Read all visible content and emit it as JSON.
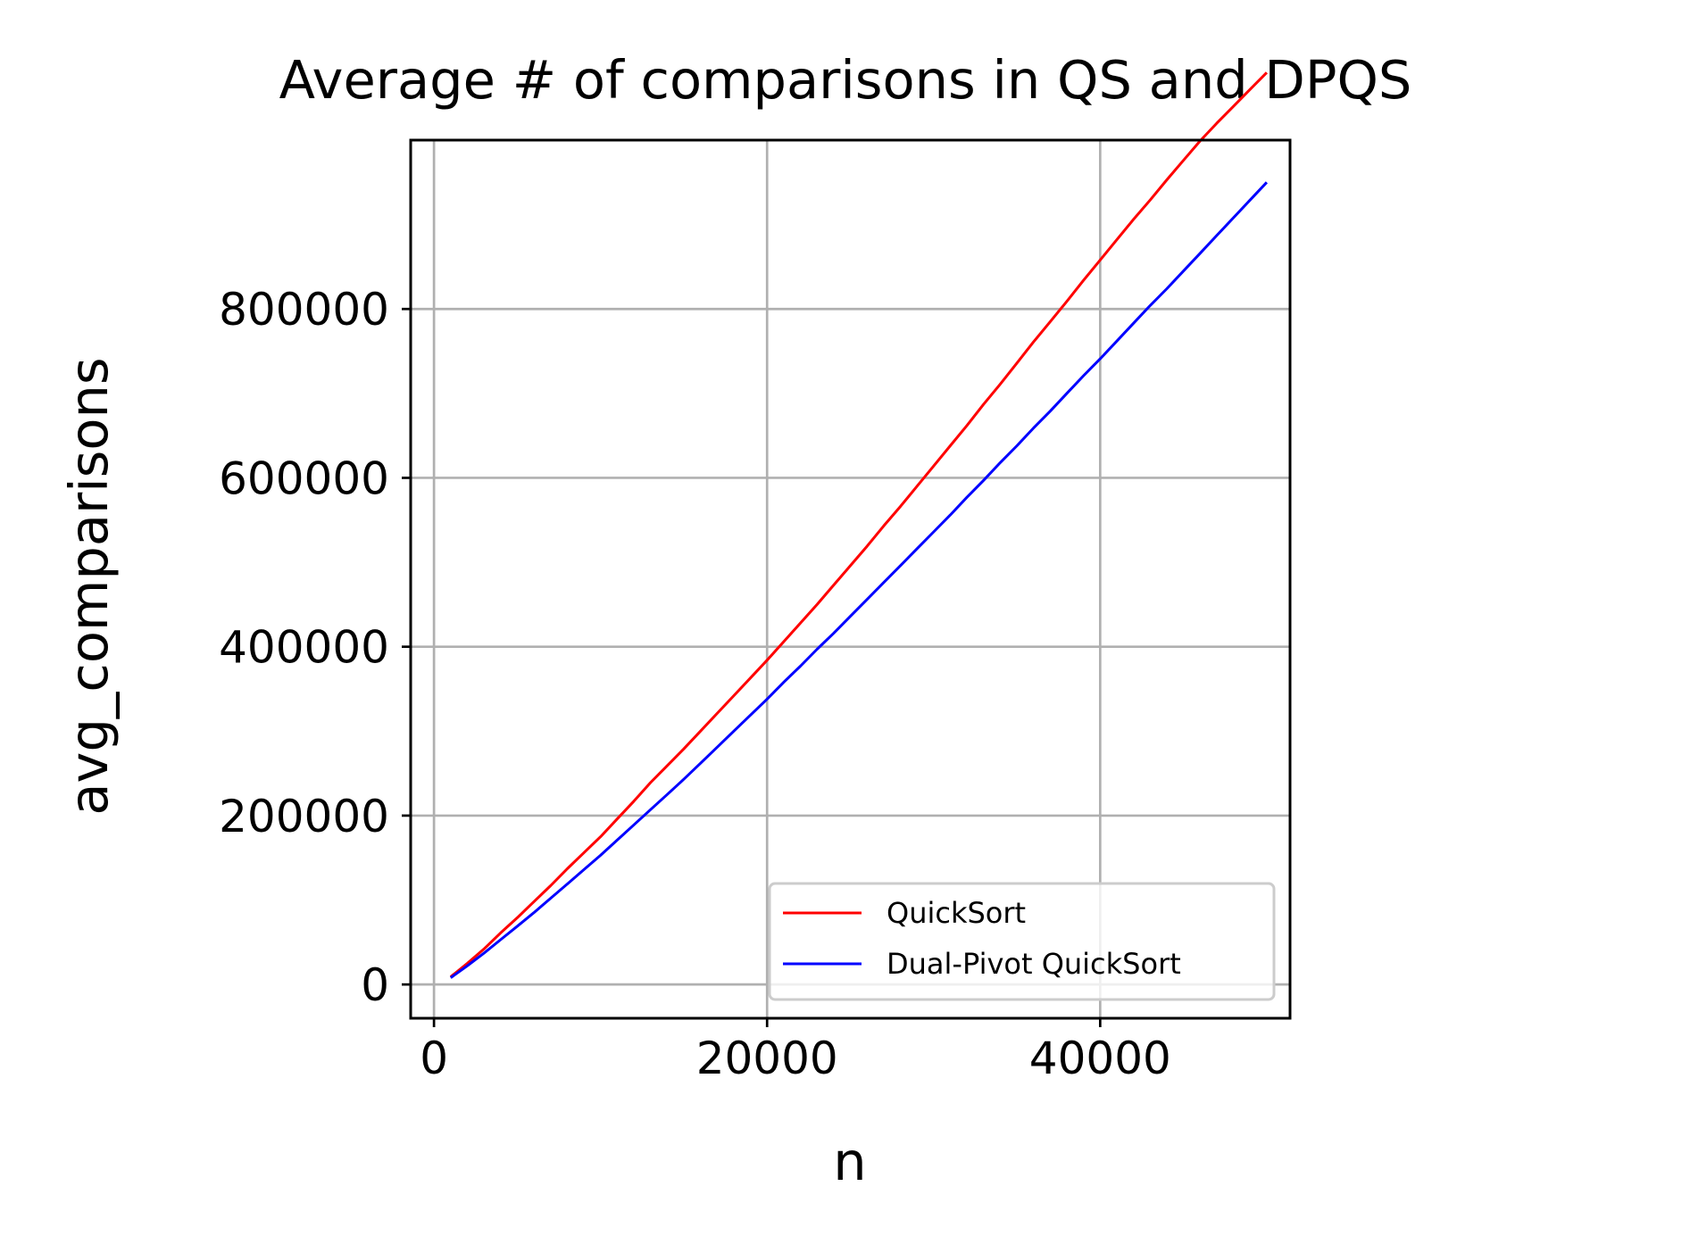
{
  "chart_data": {
    "type": "line",
    "title": "Average # of comparisons in QS and DPQS",
    "xlabel": "n",
    "ylabel": "avg_comparisons",
    "xlim": [
      -1400,
      51400
    ],
    "ylim": [
      -40000,
      1000000
    ],
    "xticks": [
      0,
      20000,
      40000
    ],
    "xtick_labels": [
      "0",
      "20000",
      "40000"
    ],
    "yticks": [
      0,
      200000,
      400000,
      600000,
      800000
    ],
    "ytick_labels": [
      "0",
      "200000",
      "400000",
      "600000",
      "800000"
    ],
    "grid": true,
    "legend_position": "lower right",
    "x": [
      1000,
      2000,
      3000,
      4000,
      5000,
      6000,
      7000,
      8000,
      9000,
      10000,
      11000,
      12000,
      13000,
      14000,
      15000,
      16000,
      17000,
      18000,
      19000,
      20000,
      21000,
      22000,
      23000,
      24000,
      25000,
      26000,
      27000,
      28000,
      29000,
      30000,
      31000,
      32000,
      33000,
      34000,
      35000,
      36000,
      37000,
      38000,
      39000,
      40000,
      41000,
      42000,
      43000,
      44000,
      45000,
      46000,
      47000,
      48000,
      49000,
      50000
    ],
    "series": [
      {
        "name": "QuickSort",
        "color": "#ff0000",
        "values": [
          9000,
          25000,
          42000,
          61000,
          79000,
          98000,
          117000,
          137000,
          156000,
          175000,
          196000,
          217000,
          239000,
          259000,
          279000,
          300000,
          321000,
          342000,
          363000,
          384000,
          406000,
          428000,
          450000,
          473000,
          496000,
          519000,
          543000,
          566000,
          590000,
          614000,
          638000,
          662000,
          687000,
          711000,
          736000,
          761000,
          785000,
          809000,
          834000,
          858000,
          882000,
          906000,
          929000,
          953000,
          976000,
          999000,
          1020000,
          1040000,
          1060000,
          1080000
        ]
      },
      {
        "name": "Dual-Pivot QuickSort",
        "color": "#0000ff",
        "values": [
          8000,
          22000,
          37000,
          53000,
          69000,
          85000,
          102000,
          119000,
          136000,
          153000,
          171000,
          189000,
          207000,
          225000,
          243000,
          262000,
          281000,
          300000,
          319000,
          338000,
          358000,
          377000,
          397000,
          416000,
          436000,
          456000,
          476000,
          496000,
          516000,
          536000,
          556000,
          577000,
          597000,
          618000,
          638000,
          659000,
          679000,
          700000,
          721000,
          741000,
          762000,
          783000,
          804000,
          824000,
          845000,
          866000,
          887000,
          908000,
          929000,
          950000
        ]
      }
    ]
  }
}
